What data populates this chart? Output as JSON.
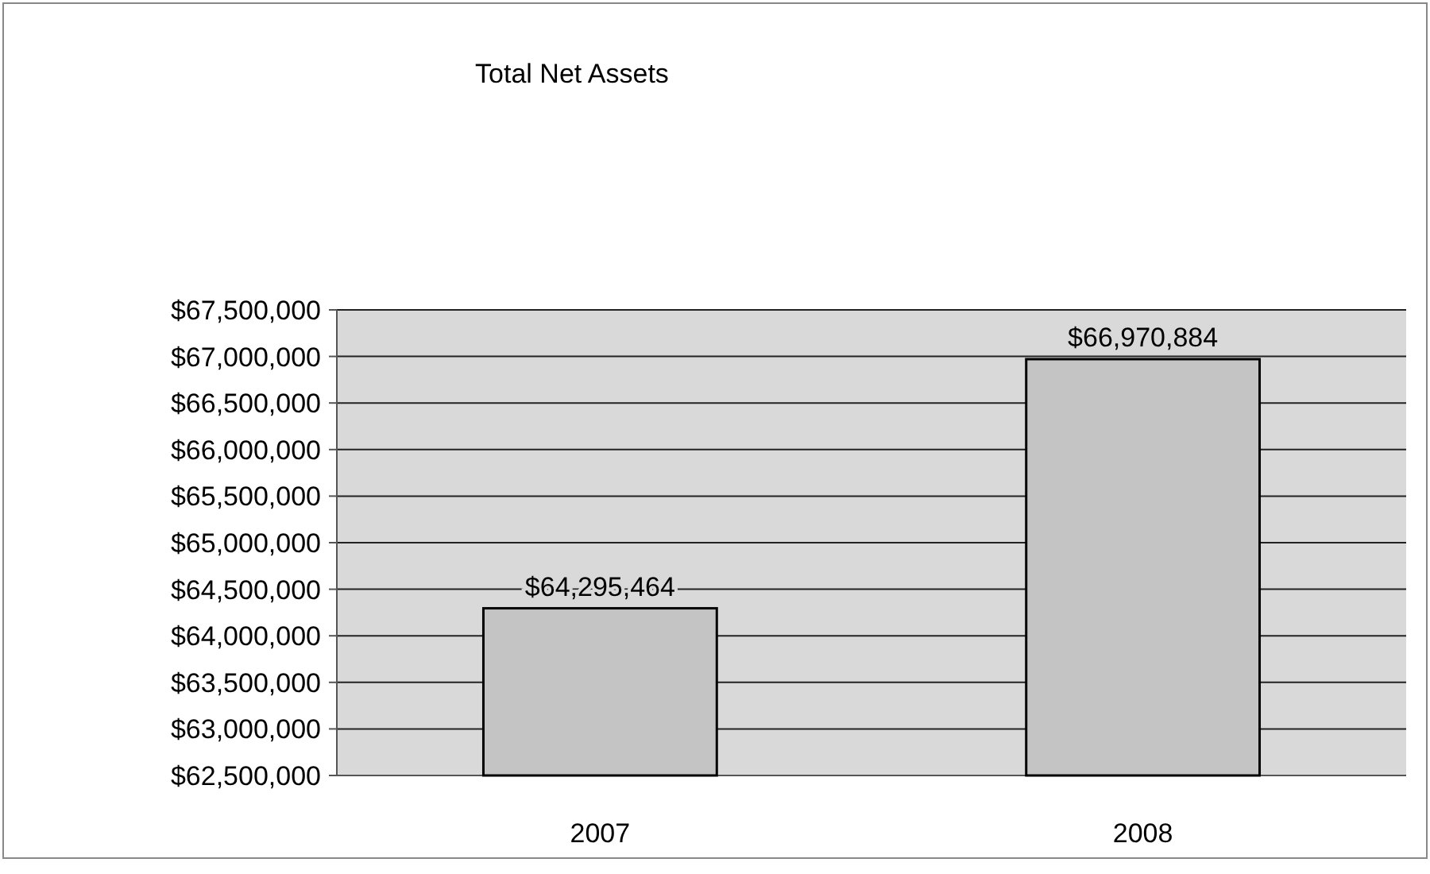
{
  "chart_data": {
    "type": "bar",
    "title": "Total Net Assets",
    "categories": [
      "2007",
      "2008"
    ],
    "values": [
      64295464,
      66970884
    ],
    "value_labels": [
      "$64,295,464",
      "$66,970,884"
    ],
    "color": "#c4c4c4",
    "ylim": [
      62500000,
      67500000
    ],
    "yticks": [
      {
        "value": 62500000,
        "label": "$62,500,000"
      },
      {
        "value": 63000000,
        "label": "$63,000,000"
      },
      {
        "value": 63500000,
        "label": "$63,500,000"
      },
      {
        "value": 64000000,
        "label": "$64,000,000"
      },
      {
        "value": 64500000,
        "label": "$64,500,000"
      },
      {
        "value": 65000000,
        "label": "$65,000,000"
      },
      {
        "value": 65500000,
        "label": "$65,500,000"
      },
      {
        "value": 66000000,
        "label": "$66,000,000"
      },
      {
        "value": 66500000,
        "label": "$66,500,000"
      },
      {
        "value": 67000000,
        "label": "$67,000,000"
      },
      {
        "value": 67500000,
        "label": "$67,500,000"
      }
    ],
    "grid": "y"
  }
}
